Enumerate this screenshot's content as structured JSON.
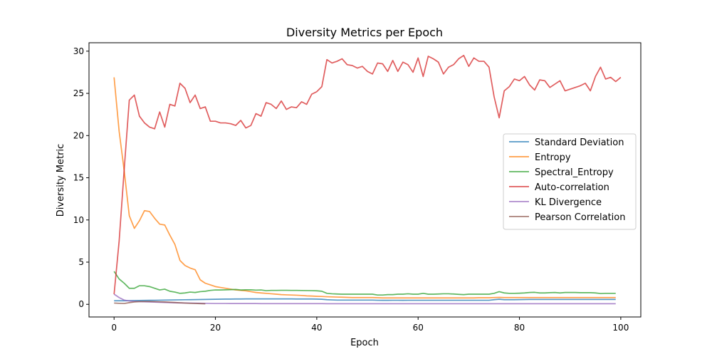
{
  "chart_data": {
    "type": "line",
    "title": "Diversity Metrics per Epoch",
    "xlabel": "Epoch",
    "ylabel": "Diversity Metric",
    "xlim": [
      -4.95,
      103.95
    ],
    "ylim": [
      -1.5,
      31.0
    ],
    "xticks": [
      0,
      20,
      40,
      60,
      80,
      100
    ],
    "yticks": [
      0,
      5,
      10,
      15,
      20,
      25,
      30
    ],
    "xtick_labels": [
      "0",
      "20",
      "40",
      "60",
      "80",
      "100"
    ],
    "ytick_labels": [
      "0",
      "5",
      "10",
      "15",
      "20",
      "25",
      "30"
    ],
    "grid": false,
    "legend_position": "center-right",
    "series": [
      {
        "name": "Standard Deviation",
        "color": "#1f77b4",
        "x_start": 0,
        "values": [
          0.42,
          0.42,
          0.42,
          0.43,
          0.44,
          0.45,
          0.46,
          0.47,
          0.48,
          0.49,
          0.5,
          0.51,
          0.52,
          0.53,
          0.54,
          0.55,
          0.56,
          0.57,
          0.58,
          0.59,
          0.6,
          0.61,
          0.62,
          0.62,
          0.63,
          0.63,
          0.64,
          0.64,
          0.64,
          0.64,
          0.64,
          0.64,
          0.64,
          0.64,
          0.64,
          0.64,
          0.63,
          0.63,
          0.63,
          0.63,
          0.62,
          0.6,
          0.55,
          0.52,
          0.5,
          0.5,
          0.5,
          0.5,
          0.5,
          0.5,
          0.5,
          0.5,
          0.48,
          0.47,
          0.47,
          0.48,
          0.48,
          0.47,
          0.48,
          0.48,
          0.48,
          0.48,
          0.48,
          0.48,
          0.48,
          0.48,
          0.48,
          0.48,
          0.48,
          0.48,
          0.48,
          0.48,
          0.48,
          0.48,
          0.48,
          0.55,
          0.6,
          0.55,
          0.55,
          0.55,
          0.56,
          0.57,
          0.58,
          0.58,
          0.58,
          0.58,
          0.58,
          0.58,
          0.58,
          0.58,
          0.58,
          0.58,
          0.58,
          0.58,
          0.58,
          0.58,
          0.58,
          0.58,
          0.58,
          0.58
        ]
      },
      {
        "name": "Entropy",
        "color": "#ff7f0e",
        "x_start": 0,
        "values": [
          26.9,
          20.5,
          15.8,
          10.5,
          9.0,
          9.9,
          11.1,
          11.0,
          10.2,
          9.5,
          9.4,
          8.2,
          7.1,
          5.2,
          4.6,
          4.3,
          4.1,
          2.9,
          2.5,
          2.3,
          2.1,
          2.0,
          1.9,
          1.8,
          1.7,
          1.65,
          1.6,
          1.5,
          1.4,
          1.35,
          1.3,
          1.25,
          1.2,
          1.15,
          1.12,
          1.1,
          1.08,
          1.05,
          1.0,
          0.98,
          0.95,
          0.93,
          0.9,
          0.88,
          0.86,
          0.84,
          0.82,
          0.8,
          0.8,
          0.8,
          0.8,
          0.8,
          0.78,
          0.76,
          0.76,
          0.76,
          0.76,
          0.76,
          0.76,
          0.76,
          0.76,
          0.76,
          0.76,
          0.76,
          0.76,
          0.76,
          0.76,
          0.76,
          0.76,
          0.76,
          0.76,
          0.76,
          0.78,
          0.78,
          0.78,
          0.8,
          0.82,
          0.8,
          0.8,
          0.8,
          0.8,
          0.8,
          0.8,
          0.8,
          0.8,
          0.8,
          0.8,
          0.8,
          0.8,
          0.8,
          0.8,
          0.8,
          0.8,
          0.8,
          0.8,
          0.8,
          0.8,
          0.8,
          0.8,
          0.8
        ]
      },
      {
        "name": "Spectral_Entropy",
        "color": "#2ca02c",
        "x_start": 0,
        "values": [
          3.9,
          3.0,
          2.5,
          1.9,
          1.9,
          2.2,
          2.2,
          2.1,
          1.9,
          1.7,
          1.8,
          1.55,
          1.45,
          1.3,
          1.35,
          1.45,
          1.4,
          1.5,
          1.55,
          1.65,
          1.7,
          1.7,
          1.72,
          1.74,
          1.76,
          1.7,
          1.72,
          1.72,
          1.68,
          1.7,
          1.62,
          1.65,
          1.65,
          1.66,
          1.66,
          1.65,
          1.65,
          1.64,
          1.63,
          1.62,
          1.6,
          1.55,
          1.3,
          1.25,
          1.22,
          1.2,
          1.2,
          1.2,
          1.2,
          1.2,
          1.2,
          1.2,
          1.1,
          1.1,
          1.15,
          1.15,
          1.2,
          1.2,
          1.25,
          1.2,
          1.2,
          1.3,
          1.2,
          1.2,
          1.22,
          1.25,
          1.25,
          1.22,
          1.18,
          1.15,
          1.2,
          1.2,
          1.2,
          1.2,
          1.2,
          1.3,
          1.5,
          1.35,
          1.3,
          1.3,
          1.32,
          1.35,
          1.4,
          1.42,
          1.35,
          1.35,
          1.38,
          1.4,
          1.35,
          1.4,
          1.4,
          1.4,
          1.38,
          1.38,
          1.38,
          1.35,
          1.28,
          1.3,
          1.3,
          1.3
        ]
      },
      {
        "name": "Auto-correlation",
        "color": "#d62728",
        "x_start": 0,
        "values": [
          1.2,
          7.5,
          16.0,
          24.2,
          24.8,
          22.3,
          21.5,
          21.0,
          20.8,
          22.8,
          21.0,
          23.7,
          23.5,
          26.2,
          25.6,
          23.9,
          24.8,
          23.2,
          23.4,
          21.7,
          21.7,
          21.5,
          21.5,
          21.4,
          21.2,
          21.8,
          20.9,
          21.2,
          22.6,
          22.3,
          23.9,
          23.7,
          23.2,
          24.1,
          23.1,
          23.4,
          23.3,
          24.0,
          23.7,
          24.9,
          25.2,
          25.8,
          29.0,
          28.6,
          28.8,
          29.1,
          28.4,
          28.3,
          28.0,
          28.2,
          27.6,
          27.3,
          28.6,
          28.5,
          27.6,
          28.9,
          27.6,
          28.7,
          28.4,
          27.5,
          29.2,
          27.0,
          29.4,
          29.1,
          28.7,
          27.3,
          28.1,
          28.4,
          29.1,
          29.5,
          28.2,
          29.2,
          28.8,
          28.8,
          28.1,
          24.6,
          22.1,
          25.3,
          25.8,
          26.7,
          26.5,
          27.0,
          26.0,
          25.4,
          26.6,
          26.5,
          25.7,
          26.1,
          26.5,
          25.3,
          25.5,
          25.7,
          25.9,
          26.2,
          25.3,
          27.0,
          28.1,
          26.7,
          26.9,
          26.4,
          26.9
        ]
      },
      {
        "name": "KL Divergence",
        "color": "#9467bd",
        "x_start": 0,
        "values": [
          1.2,
          0.8,
          0.5,
          0.4,
          0.35,
          0.32,
          0.3,
          0.28,
          0.26,
          0.24,
          0.22,
          0.2,
          0.18,
          0.17,
          0.16,
          0.15,
          0.14,
          0.13,
          0.12,
          0.11,
          0.1,
          0.1,
          0.1,
          0.09,
          0.09,
          0.09,
          0.09,
          0.09,
          0.09,
          0.08,
          0.08,
          0.08,
          0.08,
          0.08,
          0.08,
          0.08,
          0.08,
          0.08,
          0.08,
          0.08,
          0.08,
          0.08,
          0.07,
          0.07,
          0.07,
          0.07,
          0.07,
          0.07,
          0.07,
          0.07,
          0.07,
          0.07,
          0.07,
          0.07,
          0.07,
          0.07,
          0.07,
          0.07,
          0.07,
          0.07,
          0.07,
          0.07,
          0.07,
          0.07,
          0.07,
          0.07,
          0.07,
          0.07,
          0.07,
          0.07,
          0.07,
          0.07,
          0.07,
          0.07,
          0.07,
          0.07,
          0.07,
          0.07,
          0.07,
          0.07,
          0.07,
          0.07,
          0.07,
          0.07,
          0.07,
          0.07,
          0.07,
          0.07,
          0.07,
          0.07,
          0.07,
          0.07,
          0.07,
          0.07,
          0.07,
          0.07,
          0.07,
          0.07,
          0.07,
          0.07
        ]
      },
      {
        "name": "Pearson Correlation",
        "color": "#8c564b",
        "x_start": 0,
        "values": [
          0.15,
          0.12,
          0.1,
          0.2,
          0.28,
          0.32,
          0.33,
          0.33,
          0.32,
          0.3,
          0.28,
          0.25,
          0.22,
          0.18,
          0.15,
          0.12,
          0.1,
          0.08,
          0.06
        ]
      }
    ]
  }
}
